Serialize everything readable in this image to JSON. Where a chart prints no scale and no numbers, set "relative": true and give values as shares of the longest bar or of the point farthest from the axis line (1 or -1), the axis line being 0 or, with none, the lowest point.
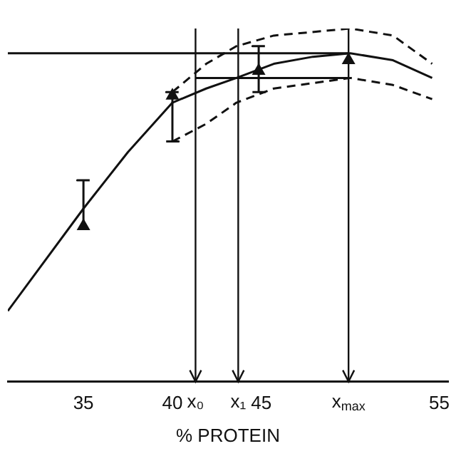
{
  "chart_data": {
    "type": "line",
    "xlabel": "% PROTEIN",
    "relative": true,
    "grid": false,
    "legend": false,
    "tick_labels": "x",
    "xlim": [
      30.75,
      55.5
    ],
    "xticks": [
      35,
      40,
      45,
      55
    ],
    "series": [
      {
        "type": "line",
        "color": "#111111",
        "line_style": "solid",
        "marker": "none",
        "x": [
          30.75,
          35,
          37.5,
          40,
          41.9,
          43.6,
          45.7,
          47.9,
          50,
          52.4,
          54.6
        ],
        "values": [
          0.2,
          0.49,
          0.65,
          0.79,
          0.83,
          0.86,
          0.9,
          0.92,
          0.93,
          0.91,
          0.86
        ]
      },
      {
        "type": "line",
        "color": "#111111",
        "line_style": "dashed",
        "marker": "none",
        "x": [
          40,
          41.9,
          43.6,
          45.7,
          50,
          52.4,
          54.6
        ],
        "values": [
          0.82,
          0.9,
          0.95,
          0.98,
          1.0,
          0.98,
          0.9
        ]
      },
      {
        "type": "line",
        "color": "#111111",
        "line_style": "dashed",
        "marker": "none",
        "x": [
          40,
          41.9,
          43.6,
          45.7,
          50,
          52.4,
          54.6
        ],
        "values": [
          0.68,
          0.73,
          0.79,
          0.83,
          0.86,
          0.84,
          0.8
        ]
      },
      {
        "type": "line",
        "color": "#111111",
        "line_style": "solid",
        "marker": "none",
        "x": [
          30.75,
          49.9
        ],
        "values": [
          0.93,
          0.93
        ]
      },
      {
        "type": "line",
        "color": "#111111",
        "line_style": "solid",
        "marker": "none",
        "x": [
          41.3,
          49.9
        ],
        "values": [
          0.86,
          0.86
        ]
      },
      {
        "type": "line",
        "color": "#111111",
        "line_style": "solid",
        "marker": "none",
        "x": [
          35,
          35,
          34.65,
          35.35
        ],
        "values": [
          0.44,
          0.57,
          0.57,
          0.57
        ]
      },
      {
        "type": "line",
        "color": "#111111",
        "line_style": "solid",
        "marker": "none",
        "x": [
          39.65,
          40.35,
          40,
          40,
          39.65,
          40.35
        ],
        "values": [
          0.68,
          0.68,
          0.68,
          0.82,
          0.82,
          0.82
        ]
      },
      {
        "type": "line",
        "color": "#111111",
        "line_style": "solid",
        "marker": "none",
        "x": [
          44.5,
          45.2,
          44.85,
          44.85,
          44.5,
          45.2
        ],
        "values": [
          0.82,
          0.82,
          0.82,
          0.95,
          0.95,
          0.95
        ]
      },
      {
        "type": "scatter",
        "color": "#111111",
        "marker": "triangle",
        "x": [
          35,
          40,
          44.85,
          49.9
        ],
        "values": [
          0.44,
          0.81,
          0.88,
          0.91
        ]
      }
    ],
    "ref_lines": [
      {
        "axis": "x",
        "value": 41.3,
        "label": "x₀"
      },
      {
        "axis": "x",
        "value": 43.7,
        "label": "x₁"
      },
      {
        "axis": "x",
        "value": 49.9,
        "label": "x$_{max}$"
      }
    ]
  }
}
